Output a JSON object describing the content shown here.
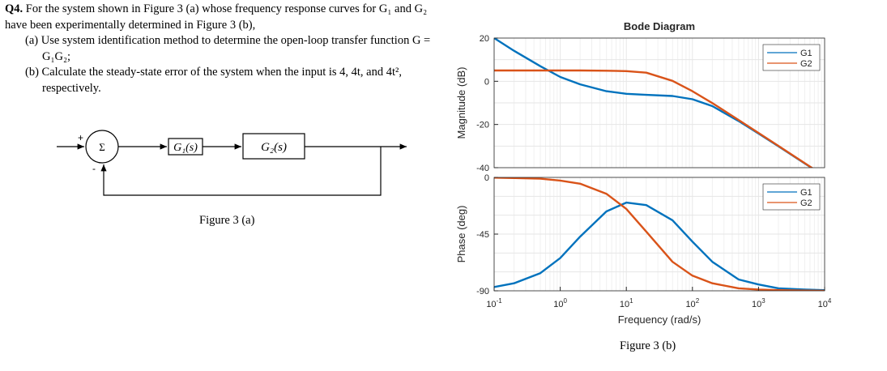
{
  "question": {
    "number": "Q4.",
    "intro_line1": "For the system shown in Figure 3 (a) whose frequency response curves for G₁ and G₂",
    "intro_line2": "have been experimentally determined in Figure 3 (b),",
    "part_a_line1": "(a) Use system identification method to determine the open-loop transfer function G =",
    "part_a_line2": "G₁G₂;",
    "part_b_line1": "(b) Calculate the steady-state error of the system when the input is 4, 4t, and 4t²,",
    "part_b_line2": "respectively."
  },
  "block_diagram": {
    "summing_symbol": "Σ",
    "plus_sign": "+",
    "minus_sign": "-",
    "block1_label": "G₁(s)",
    "block2_label": "G₂(s)",
    "caption": "Figure 3 (a)"
  },
  "figure_b_caption": "Figure 3 (b)",
  "colors": {
    "G1": "#0072BD",
    "G2": "#D95319",
    "axes": "#262626",
    "grid": "#e6e6e6"
  },
  "chart_data": {
    "type": "line",
    "title": "Bode Diagram",
    "xlabel": "Frequency  (rad/s)",
    "xscale": "log",
    "xlim": [
      0.1,
      10000
    ],
    "x_tick_labels": [
      "10-1",
      "100",
      "101",
      "102",
      "103",
      "104"
    ],
    "legend_position": "top-right",
    "legend": [
      "G1",
      "G2"
    ],
    "grid": true,
    "panels": [
      {
        "name": "magnitude",
        "ylabel": "Magnitude (dB)",
        "ylim": [
          -40,
          20
        ],
        "yticks": [
          20,
          0,
          -20,
          -40
        ],
        "series": [
          {
            "name": "G1",
            "x": [
              0.1,
              0.2,
              0.5,
              1,
              2,
              5,
              10,
              20,
              50,
              100,
              200,
              500,
              1000,
              2000,
              5000,
              10000
            ],
            "y": [
              20,
              14.1,
              7.0,
              2.0,
              -1.4,
              -4.6,
              -5.8,
              -6.3,
              -6.8,
              -8.3,
              -11.5,
              -18.4,
              -24.2,
              -30.1,
              -38.0,
              -44.0
            ]
          },
          {
            "name": "G2",
            "x": [
              0.1,
              0.2,
              0.5,
              1,
              2,
              5,
              10,
              20,
              50,
              100,
              200,
              500,
              1000,
              2000,
              5000,
              10000
            ],
            "y": [
              5.0,
              5.0,
              5.0,
              5.0,
              5.0,
              4.9,
              4.7,
              4.0,
              0.2,
              -4.6,
              -10.1,
              -17.9,
              -23.9,
              -29.9,
              -37.9,
              -43.9
            ]
          }
        ]
      },
      {
        "name": "phase",
        "ylabel": "Phase (deg)",
        "ylim": [
          -90,
          0
        ],
        "yticks": [
          0,
          -45,
          -90
        ],
        "series": [
          {
            "name": "G1",
            "x": [
              0.1,
              0.2,
              0.5,
              1,
              2,
              5,
              10,
              20,
              50,
              100,
              200,
              500,
              1000,
              2000,
              5000,
              10000
            ],
            "y": [
              -87,
              -84,
              -76,
              -64,
              -47,
              -27,
              -20,
              -22,
              -34,
              -51,
              -67,
              -81,
              -85,
              -88,
              -89,
              -89.5
            ]
          },
          {
            "name": "G2",
            "x": [
              0.1,
              0.2,
              0.5,
              1,
              2,
              5,
              10,
              20,
              50,
              100,
              200,
              500,
              1000,
              2000,
              5000,
              10000
            ],
            "y": [
              -0.2,
              -0.5,
              -1.0,
              -2.5,
              -5,
              -13,
              -25,
              -43,
              -67,
              -78,
              -84,
              -88,
              -89,
              -89.5,
              -89.8,
              -90
            ]
          }
        ]
      }
    ]
  }
}
